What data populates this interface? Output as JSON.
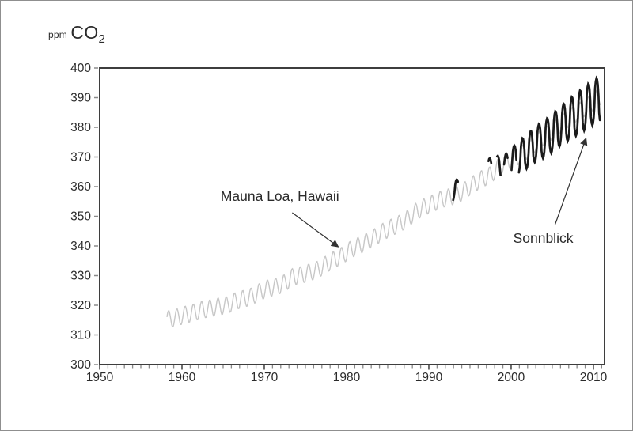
{
  "title": {
    "unit": "ppm",
    "gas": "CO",
    "subscript": "2"
  },
  "colors": {
    "text": "#2b2b2b",
    "axis_box": "#3e3e3e",
    "tick_major": "#4a4a4a",
    "tick_minor": "#8a8a8a",
    "mauna_loa": "#c7c7c7",
    "sonnblick": "#1b1b1b",
    "arrow": "#333333"
  },
  "chart_data": {
    "type": "line",
    "title": "ppm CO2",
    "ylabel": "ppm CO2",
    "xlabel": "",
    "grid": false,
    "legend_position": "none",
    "xlim": [
      1950,
      2011.35
    ],
    "ylim": [
      300,
      400
    ],
    "x_ticks": [
      1950,
      1960,
      1970,
      1980,
      1990,
      2000,
      2010
    ],
    "x_minor_tick_step_years": 1,
    "y_ticks": [
      300,
      310,
      320,
      330,
      340,
      350,
      360,
      370,
      380,
      390,
      400
    ],
    "seasonal_cycle_peak_fraction": 0.38,
    "series": [
      {
        "name": "Mauna Loa, Hawaii",
        "role": "mauna_loa",
        "start_year_plotted": 1958.17,
        "end_year_plotted": 2011.0,
        "seasonal_amplitude_ppm": 2.9,
        "annual_means": {
          "start_year": 1958,
          "values": [
            315.3,
            316.0,
            316.9,
            317.6,
            318.5,
            319.0,
            319.6,
            320.0,
            321.4,
            322.2,
            323.0,
            324.6,
            325.7,
            326.3,
            327.5,
            329.7,
            330.2,
            331.1,
            332.0,
            333.8,
            335.4,
            336.8,
            338.8,
            340.1,
            341.5,
            343.1,
            344.9,
            346.3,
            347.6,
            349.3,
            351.7,
            353.2,
            354.4,
            355.7,
            356.5,
            357.2,
            359.0,
            361.0,
            362.7,
            363.9,
            366.8,
            368.5,
            369.7,
            371.3,
            373.4,
            376.0,
            377.7,
            380.0,
            382.1,
            384.0,
            385.8,
            387.6,
            389.9,
            391.6
          ]
        }
      },
      {
        "name": "Sonnblick",
        "role": "sonnblick",
        "trend_points": [
          [
            1993,
            358.5
          ],
          [
            1997,
            365.5
          ],
          [
            1998,
            367.0
          ],
          [
            1999,
            366.0
          ],
          [
            2000,
            368.5
          ],
          [
            2001,
            370.0
          ],
          [
            2002,
            372.0
          ],
          [
            2003,
            374.5
          ],
          [
            2004,
            376.0
          ],
          [
            2005,
            378.0
          ],
          [
            2006,
            380.5
          ],
          [
            2007,
            382.5
          ],
          [
            2008,
            384.5
          ],
          [
            2009,
            386.5
          ],
          [
            2010,
            388.5
          ],
          [
            2011,
            389.5
          ]
        ],
        "segments": [
          {
            "from": 1992.95,
            "to": 1993.6,
            "amp_start": 3.2,
            "amp_end": 3.2
          },
          {
            "from": 1997.25,
            "to": 1997.6,
            "amp_start": 3.5,
            "amp_end": 3.5
          },
          {
            "from": 1998.3,
            "to": 1998.75,
            "amp_start": 3.8,
            "amp_end": 3.8
          },
          {
            "from": 1999.15,
            "to": 1999.6,
            "amp_start": 4.2,
            "amp_end": 4.2
          },
          {
            "from": 2000.05,
            "to": 2000.7,
            "amp_start": 4.8,
            "amp_end": 4.8
          },
          {
            "from": 2000.95,
            "to": 2010.85,
            "amp_start": 5.5,
            "amp_end": 7.8
          }
        ]
      }
    ],
    "annotations": [
      {
        "id": "mauna-loa-label",
        "text": "Mauna Loa, Hawaii",
        "anchor": {
          "year": 1971.9,
          "ppm": 356.8
        },
        "arrow": {
          "from": {
            "year": 1973.4,
            "ppm": 351.2
          },
          "to": {
            "year": 1979.0,
            "ppm": 339.7
          }
        }
      },
      {
        "id": "sonnblick-label",
        "text": "Sonnblick",
        "anchor": {
          "year": 2003.9,
          "ppm": 342.7
        },
        "arrow": {
          "from": {
            "year": 2005.3,
            "ppm": 346.9
          },
          "to": {
            "year": 2009.1,
            "ppm": 376.3
          }
        }
      }
    ]
  }
}
